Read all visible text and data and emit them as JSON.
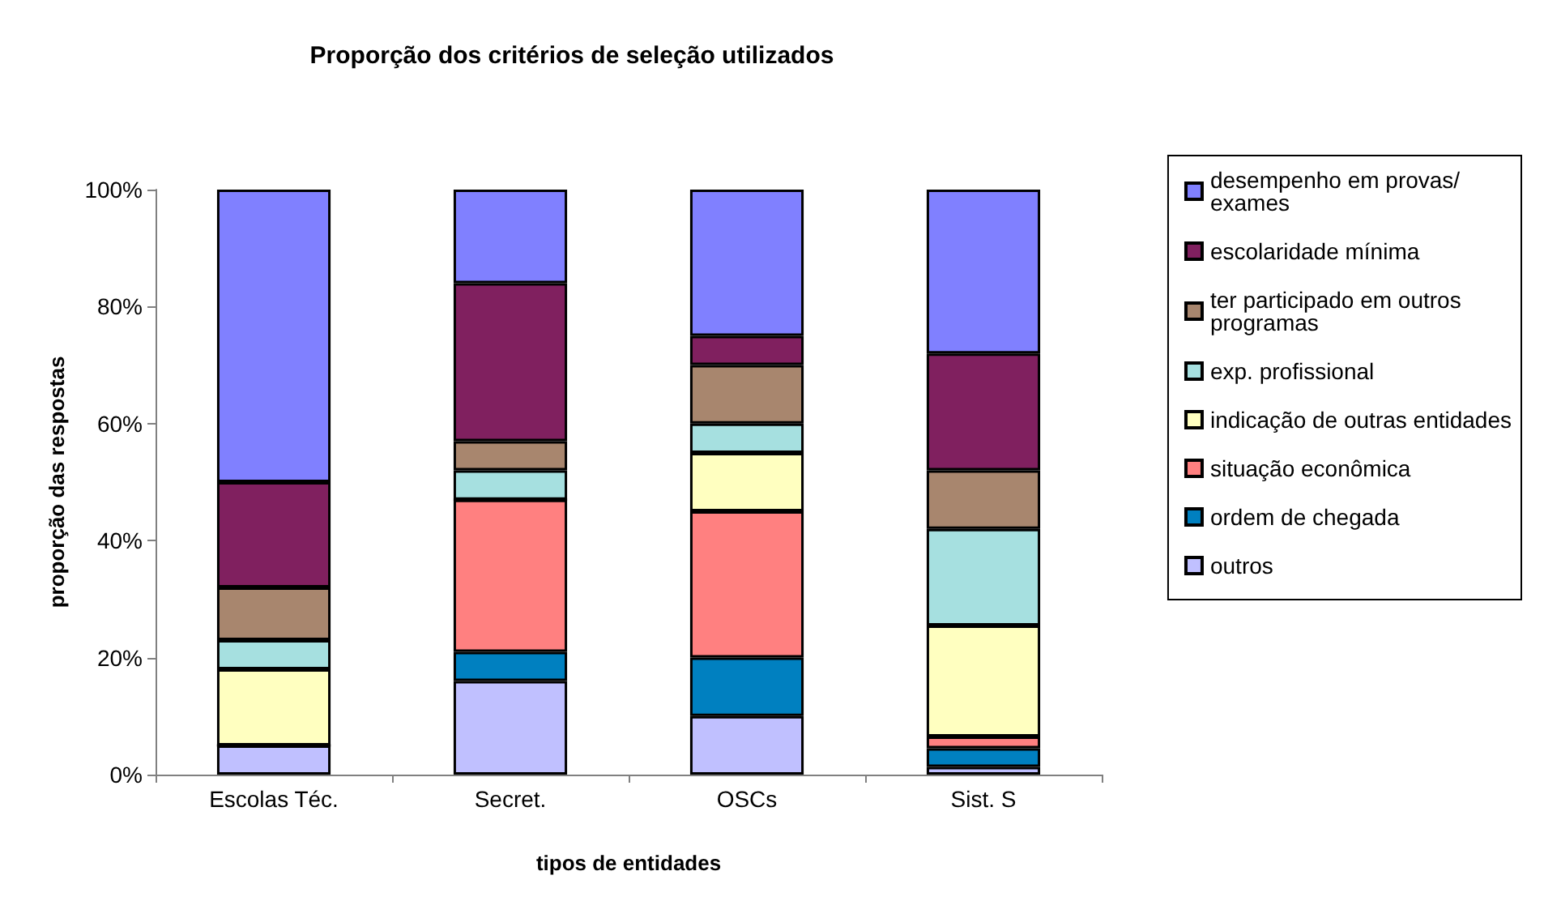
{
  "chart_data": {
    "type": "bar",
    "stacked": true,
    "title": "Proporção dos critérios de seleção utilizados",
    "xlabel": "tipos de entidades",
    "ylabel": "proporção das respostas",
    "categories": [
      "Escolas Téc.",
      "Secret.",
      "OSCs",
      "Sist. S"
    ],
    "series": [
      {
        "name": "outros",
        "color": "#c0c0ff",
        "values": [
          5,
          16,
          10,
          1.3
        ]
      },
      {
        "name": "ordem de chegada",
        "color": "#0080c0",
        "values": [
          0,
          5,
          10,
          3.2
        ]
      },
      {
        "name": "situação econômica",
        "color": "#ff8080",
        "values": [
          0,
          26,
          25,
          2
        ]
      },
      {
        "name": "indicação de outras entidades",
        "color": "#ffffc0",
        "values": [
          13,
          0,
          10,
          19
        ]
      },
      {
        "name": "exp. profissional",
        "color": "#a6e0e0",
        "values": [
          5,
          5,
          5,
          16.5
        ]
      },
      {
        "name": "ter participado em outros programas",
        "color": "#a8866e",
        "values": [
          9,
          5,
          10,
          10
        ]
      },
      {
        "name": "escolaridade mínima",
        "color": "#80205f",
        "values": [
          18,
          27,
          5,
          20
        ]
      },
      {
        "name": "desempenho em provas/exames",
        "color": "#8080ff",
        "values": [
          50,
          16,
          25,
          28
        ]
      }
    ],
    "ylim": [
      0,
      100
    ],
    "yticks": [
      {
        "value": 0,
        "label": "0%"
      },
      {
        "value": 20,
        "label": "20%"
      },
      {
        "value": 40,
        "label": "40%"
      },
      {
        "value": 60,
        "label": "60%"
      },
      {
        "value": 80,
        "label": "80%"
      },
      {
        "value": 100,
        "label": "100%"
      }
    ],
    "grid": false,
    "legend": "right"
  }
}
